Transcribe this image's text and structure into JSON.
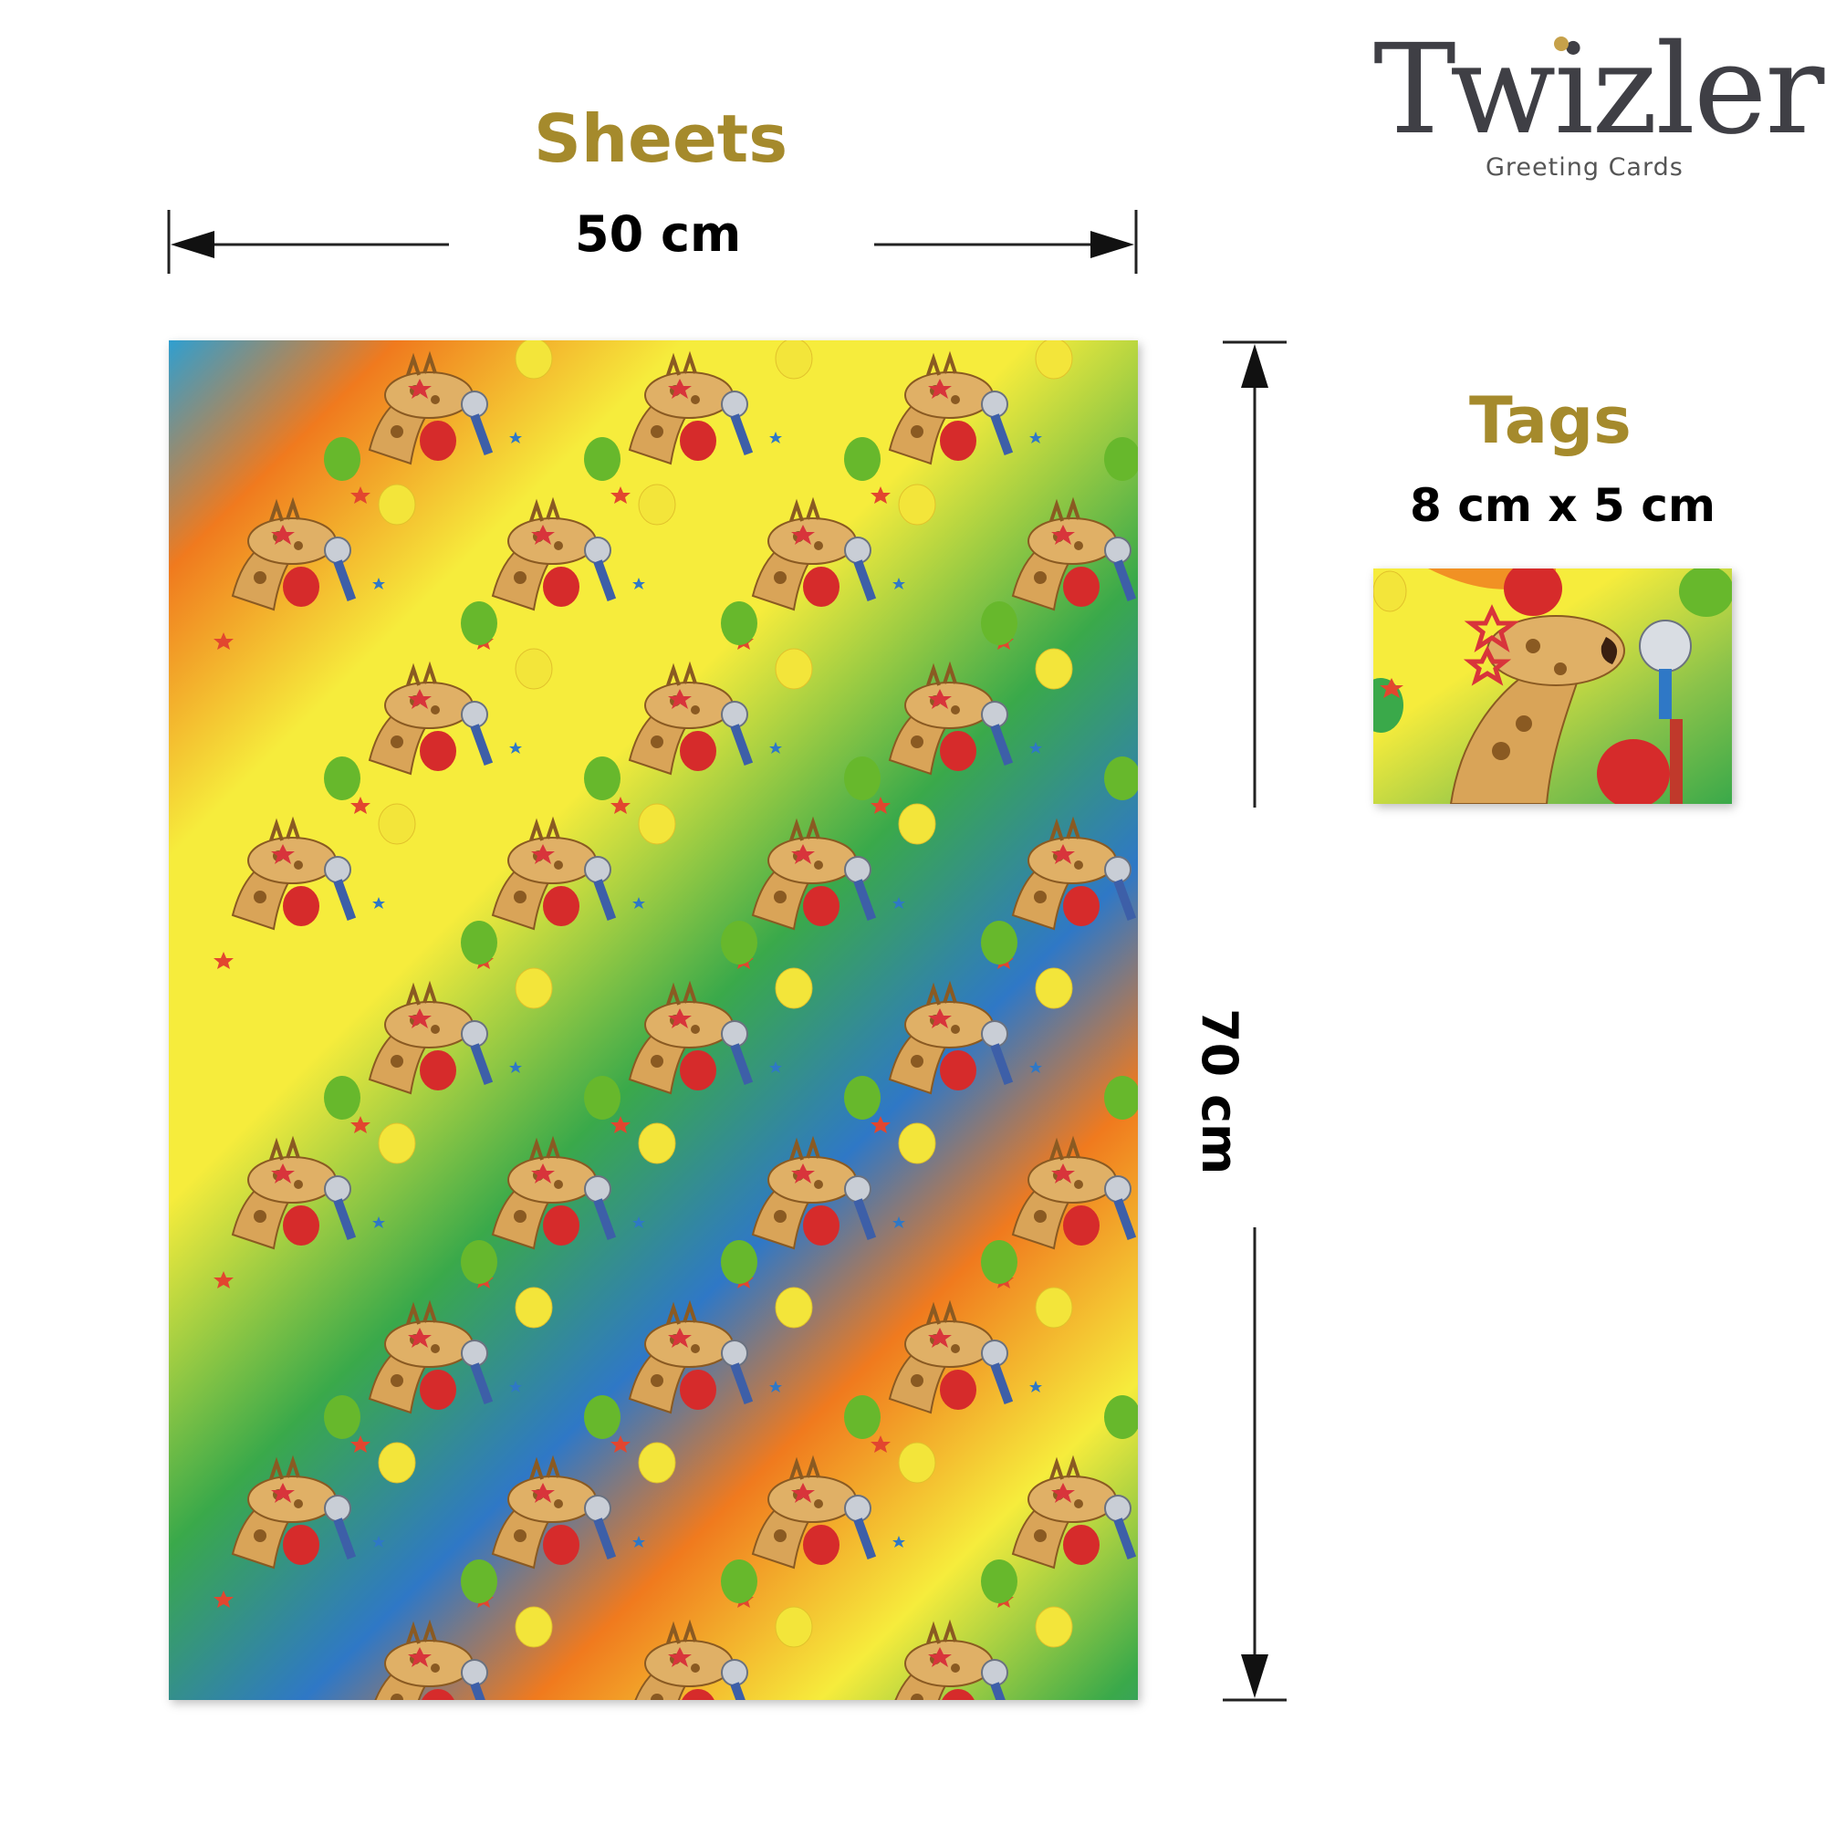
{
  "logo": {
    "brand": "Twizler",
    "tagline": "Greeting Cards"
  },
  "sheets": {
    "heading": "Sheets",
    "width": "50 cm",
    "height": "70 cm"
  },
  "tags": {
    "heading": "Tags",
    "size": "8 cm x 5 cm"
  },
  "colors": {
    "heading": "#a58a2c",
    "logo": "#3f3f45",
    "logo_dot": "#c6a14a",
    "rainbow": [
      "#f07a1e",
      "#f6ec3c",
      "#3aa94a",
      "#2f78c6"
    ]
  },
  "icons": [
    "arrow-left-icon",
    "arrow-right-icon",
    "arrow-up-icon",
    "arrow-down-icon",
    "giraffe-icon",
    "balloon-icon",
    "microphone-icon",
    "star-icon"
  ]
}
